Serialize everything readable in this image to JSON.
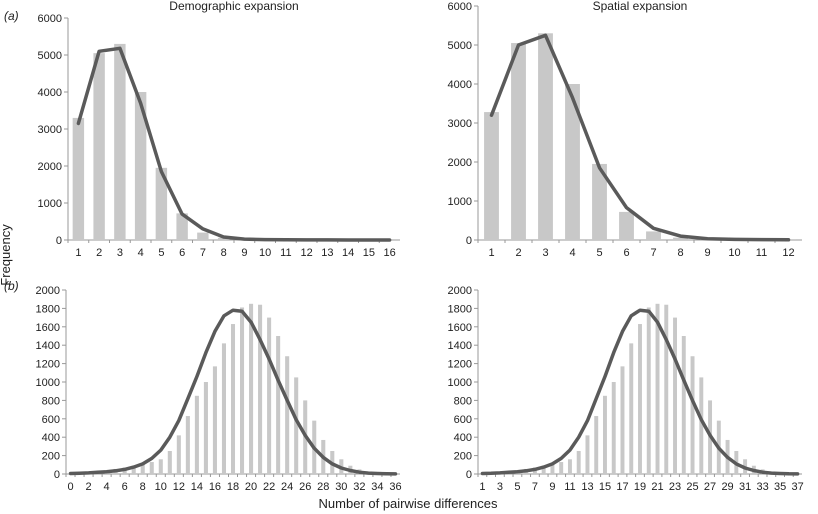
{
  "figure": {
    "ylabel": "Frequency",
    "xlabel": "Number of pairwise differences",
    "row_labels": [
      "(a)",
      "(b)"
    ]
  },
  "colors": {
    "bars": "#c8c8c8",
    "line": "#5a5a5a",
    "axis": "#999999",
    "text": "#222222"
  },
  "chart_data": [
    {
      "type": "bar",
      "title": "Demographic expansion",
      "panel": "(a)",
      "categories": [
        "1",
        "2",
        "3",
        "4",
        "5",
        "6",
        "7",
        "8",
        "9",
        "10",
        "11",
        "12",
        "13",
        "14",
        "15",
        "16"
      ],
      "ylim": [
        0,
        6000
      ],
      "yticks": [
        "0",
        "1000",
        "2000",
        "3000",
        "4000",
        "5000",
        "6000"
      ],
      "xticks": [
        "1",
        "2",
        "3",
        "4",
        "5",
        "6",
        "7",
        "8",
        "9",
        "10",
        "11",
        "12",
        "13",
        "14",
        "15",
        "16"
      ],
      "series": [
        {
          "kind": "bar",
          "values": [
            3300,
            5050,
            5300,
            4000,
            1950,
            720,
            200,
            60,
            20,
            8,
            4,
            2,
            1,
            1,
            0,
            0
          ]
        },
        {
          "kind": "line",
          "values": [
            3150,
            5100,
            5180,
            3700,
            1850,
            700,
            300,
            80,
            25,
            10,
            5,
            3,
            2,
            1,
            1,
            1
          ]
        }
      ]
    },
    {
      "type": "bar",
      "title": "Spatial expansion",
      "panel": "(a)",
      "categories": [
        "1",
        "2",
        "3",
        "4",
        "5",
        "6",
        "7",
        "8",
        "9",
        "10",
        "11",
        "12"
      ],
      "ylim": [
        0,
        6000
      ],
      "yticks": [
        "0",
        "1000",
        "2000",
        "3000",
        "4000",
        "5000",
        "6000"
      ],
      "xticks": [
        "1",
        "2",
        "3",
        "4",
        "5",
        "6",
        "7",
        "8",
        "9",
        "10",
        "11",
        "12"
      ],
      "series": [
        {
          "kind": "bar",
          "values": [
            3280,
            5050,
            5300,
            4000,
            1950,
            720,
            220,
            60,
            20,
            6,
            2,
            1
          ]
        },
        {
          "kind": "line",
          "values": [
            3200,
            5000,
            5250,
            3650,
            1850,
            830,
            300,
            100,
            30,
            15,
            10,
            5
          ]
        }
      ]
    },
    {
      "type": "bar",
      "panel": "(b)",
      "categories": [
        "0",
        "1",
        "2",
        "3",
        "4",
        "5",
        "6",
        "7",
        "8",
        "9",
        "10",
        "11",
        "12",
        "13",
        "14",
        "15",
        "16",
        "17",
        "18",
        "19",
        "20",
        "21",
        "22",
        "23",
        "24",
        "25",
        "26",
        "27",
        "28",
        "29",
        "30",
        "31",
        "32",
        "33",
        "34",
        "35",
        "36"
      ],
      "ylim": [
        0,
        2000
      ],
      "yticks": [
        "0",
        "200",
        "400",
        "600",
        "800",
        "1000",
        "1200",
        "1400",
        "1600",
        "1800",
        "2000"
      ],
      "xticks": [
        "0",
        "2",
        "4",
        "6",
        "8",
        "10",
        "12",
        "14",
        "16",
        "18",
        "20",
        "22",
        "24",
        "26",
        "28",
        "30",
        "32",
        "34",
        "36"
      ],
      "series": [
        {
          "kind": "bar",
          "values": [
            5,
            10,
            18,
            25,
            40,
            55,
            70,
            90,
            110,
            130,
            160,
            250,
            420,
            630,
            850,
            1000,
            1170,
            1420,
            1630,
            1810,
            1850,
            1840,
            1700,
            1500,
            1280,
            1050,
            800,
            580,
            370,
            250,
            160,
            90,
            50,
            25,
            10,
            5,
            2
          ]
        },
        {
          "kind": "line",
          "values": [
            5,
            8,
            12,
            18,
            25,
            35,
            50,
            75,
            110,
            170,
            260,
            400,
            580,
            820,
            1060,
            1320,
            1550,
            1720,
            1780,
            1770,
            1650,
            1460,
            1250,
            1020,
            800,
            590,
            420,
            280,
            180,
            110,
            65,
            38,
            20,
            10,
            5,
            2,
            1
          ]
        }
      ]
    },
    {
      "type": "bar",
      "panel": "(b)",
      "categories": [
        "1",
        "2",
        "3",
        "4",
        "5",
        "6",
        "7",
        "8",
        "9",
        "10",
        "11",
        "12",
        "13",
        "14",
        "15",
        "16",
        "17",
        "18",
        "19",
        "20",
        "21",
        "22",
        "23",
        "24",
        "25",
        "26",
        "27",
        "28",
        "29",
        "30",
        "31",
        "32",
        "33",
        "34",
        "35",
        "36",
        "37"
      ],
      "ylim": [
        0,
        2000
      ],
      "yticks": [
        "0",
        "200",
        "400",
        "600",
        "800",
        "1000",
        "1200",
        "1400",
        "1600",
        "1800",
        "2000"
      ],
      "xticks": [
        "1",
        "3",
        "5",
        "7",
        "9",
        "11",
        "13",
        "15",
        "17",
        "19",
        "21",
        "23",
        "25",
        "27",
        "29",
        "31",
        "33",
        "35",
        "37"
      ],
      "series": [
        {
          "kind": "bar",
          "values": [
            5,
            10,
            18,
            25,
            40,
            55,
            70,
            90,
            110,
            130,
            160,
            250,
            420,
            630,
            850,
            1000,
            1170,
            1420,
            1630,
            1810,
            1850,
            1840,
            1700,
            1500,
            1280,
            1050,
            800,
            580,
            370,
            250,
            160,
            90,
            50,
            25,
            10,
            5,
            2
          ]
        },
        {
          "kind": "line",
          "values": [
            5,
            8,
            12,
            18,
            25,
            35,
            50,
            75,
            110,
            170,
            260,
            400,
            580,
            820,
            1060,
            1320,
            1550,
            1720,
            1780,
            1770,
            1650,
            1460,
            1250,
            1020,
            800,
            590,
            420,
            280,
            180,
            110,
            65,
            38,
            20,
            10,
            5,
            2,
            1
          ]
        }
      ]
    }
  ]
}
